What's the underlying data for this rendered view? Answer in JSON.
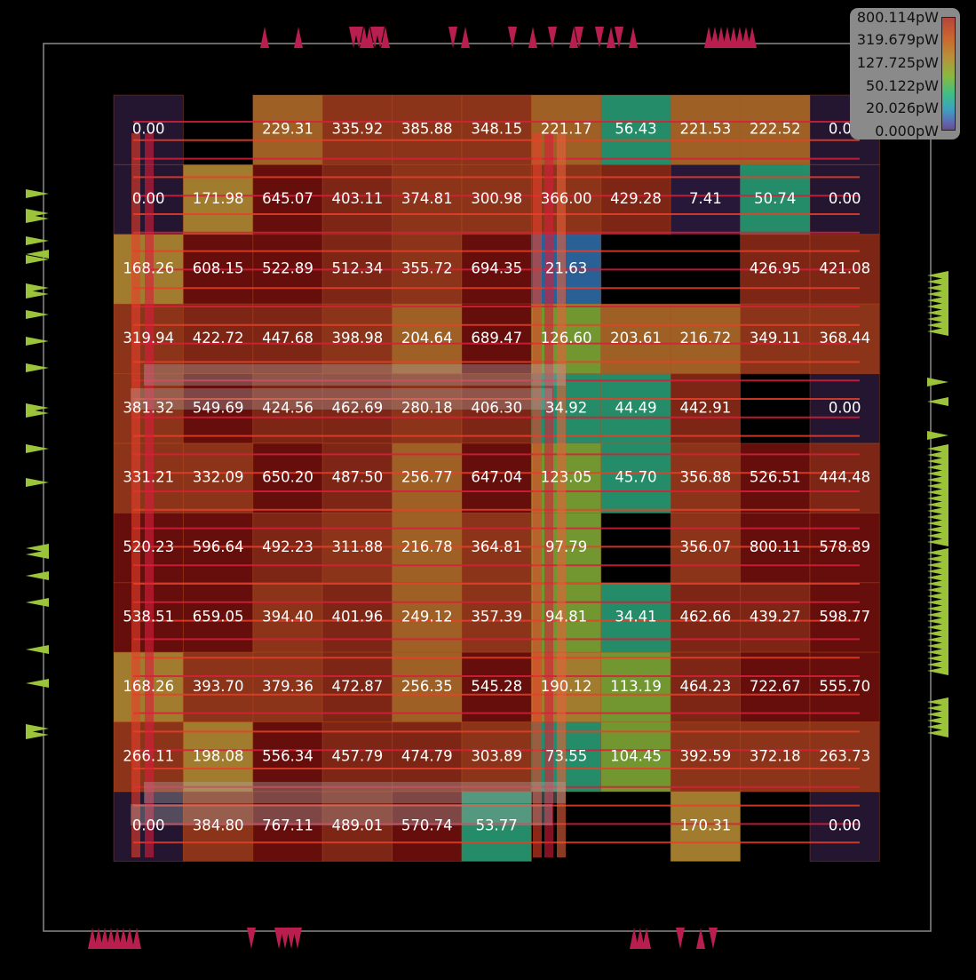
{
  "view": {
    "title": "",
    "type": "power-density-heatmap"
  },
  "legend": {
    "labels": [
      "800.114pW",
      "319.679pW",
      "127.725pW",
      "50.122pW",
      "20.026pW",
      "0.000pW"
    ],
    "colors": {
      "high": "#b5453b",
      "mid_high": "#c9672f",
      "mid": "#8bb83e",
      "mid_low": "#3fbf86",
      "low": "#5b6fb5",
      "zero": "#2a1a3a"
    }
  },
  "chart_data": {
    "type": "heatmap",
    "unit": "pW",
    "rows": 11,
    "cols": 11,
    "values": [
      [
        "0.00",
        null,
        "229.31",
        "335.92",
        "385.88",
        "348.15",
        "221.17",
        "56.43",
        "221.53",
        "222.52",
        "0.00"
      ],
      [
        "0.00",
        "171.98",
        "645.07",
        "403.11",
        "374.81",
        "300.98",
        "366.00",
        "429.28",
        "7.41",
        "50.74",
        "0.00"
      ],
      [
        "168.26",
        "608.15",
        "522.89",
        "512.34",
        "355.72",
        "694.35",
        "21.63",
        null,
        null,
        "426.95",
        "421.08"
      ],
      [
        "319.94",
        "422.72",
        "447.68",
        "398.98",
        "204.64",
        "689.47",
        "126.60",
        "203.61",
        "216.72",
        "349.11",
        "368.44"
      ],
      [
        "381.32",
        "549.69",
        "424.56",
        "462.69",
        "280.18",
        "406.30",
        "34.92",
        "44.49",
        "442.91",
        null,
        "0.00"
      ],
      [
        "331.21",
        "332.09",
        "650.20",
        "487.50",
        "256.77",
        "647.04",
        "123.05",
        "45.70",
        "356.88",
        "526.51",
        "444.48"
      ],
      [
        "520.23",
        "596.64",
        "492.23",
        "311.88",
        "216.78",
        "364.81",
        "97.79",
        null,
        "356.07",
        "800.11",
        "578.89"
      ],
      [
        "538.51",
        "659.05",
        "394.40",
        "401.96",
        "249.12",
        "357.39",
        "94.81",
        "34.41",
        "462.66",
        "439.27",
        "598.77"
      ],
      [
        "168.26",
        "393.70",
        "379.36",
        "472.87",
        "256.35",
        "545.28",
        "190.12",
        "113.19",
        "464.23",
        "722.67",
        "555.70"
      ],
      [
        "266.11",
        "198.08",
        "556.34",
        "457.79",
        "474.79",
        "303.89",
        "73.55",
        "104.45",
        "392.59",
        "372.18",
        "263.73"
      ],
      [
        "0.00",
        "384.80",
        "767.11",
        "489.01",
        "570.74",
        "53.77",
        null,
        null,
        "170.31",
        null,
        "0.00"
      ]
    ]
  }
}
